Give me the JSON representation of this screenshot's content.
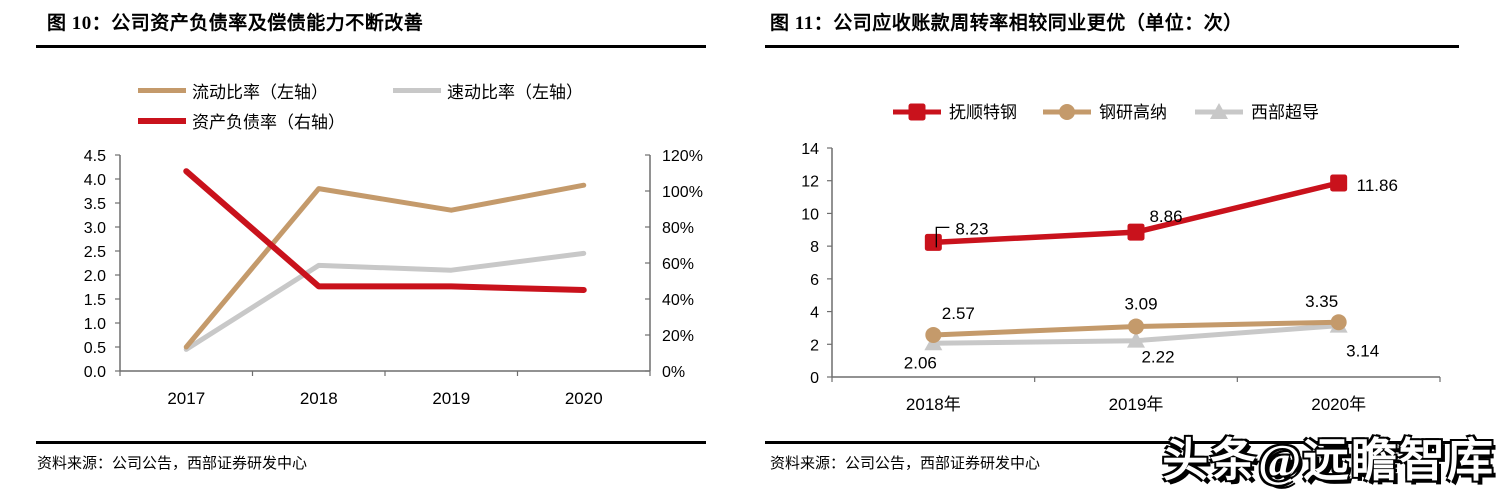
{
  "panels": [
    {
      "source": "资料来源：公司公告，西部证券研发中心"
    },
    {
      "source": "资料来源：公司公告，西部证券研发中心"
    }
  ],
  "watermark": "头条@远瞻智库",
  "colors": {
    "red": "#C9121C",
    "tan": "#C49A6B",
    "gray": "#C8C8C8",
    "axis": "#6E6E6E"
  },
  "chart_data": [
    {
      "type": "line",
      "title": "图 10：公司资产负债率及偿债能力不断改善",
      "categories": [
        "2017",
        "2018",
        "2019",
        "2020"
      ],
      "series": [
        {
          "name": "流动比率（左轴）",
          "axis": "left",
          "color": "#C49A6B",
          "values": [
            0.5,
            3.8,
            3.35,
            3.87
          ]
        },
        {
          "name": "速动比率（左轴）",
          "axis": "left",
          "color": "#C8C8C8",
          "values": [
            0.45,
            2.2,
            2.1,
            2.45
          ]
        },
        {
          "name": "资产负债率（右轴）",
          "axis": "right",
          "color": "#C9121C",
          "values": [
            111,
            47,
            47,
            45
          ]
        }
      ],
      "left_axis": {
        "min": 0,
        "max": 4.5,
        "ticks": [
          "0.0",
          "0.5",
          "1.0",
          "1.5",
          "2.0",
          "2.5",
          "3.0",
          "3.5",
          "4.0",
          "4.5"
        ]
      },
      "right_axis": {
        "min": 0,
        "max": 120,
        "ticks": [
          "0%",
          "20%",
          "40%",
          "60%",
          "80%",
          "100%",
          "120%"
        ]
      },
      "legend_position": "top",
      "grid": false
    },
    {
      "type": "line",
      "title": "图 11：公司应收账款周转率相较同业更优（单位：次）",
      "categories": [
        "2018年",
        "2019年",
        "2020年"
      ],
      "series": [
        {
          "name": "抚顺特钢",
          "marker": "square",
          "color": "#C9121C",
          "values": [
            8.23,
            8.86,
            11.86
          ]
        },
        {
          "name": "钢研高纳",
          "marker": "circle",
          "color": "#C49A6B",
          "values": [
            2.57,
            3.09,
            3.35
          ]
        },
        {
          "name": "西部超导",
          "marker": "triangle",
          "color": "#C8C8C8",
          "values": [
            2.06,
            2.22,
            3.14
          ]
        }
      ],
      "y_axis": {
        "min": 0,
        "max": 14,
        "ticks": [
          "0",
          "2",
          "4",
          "6",
          "8",
          "10",
          "12",
          "14"
        ]
      },
      "data_labels": true,
      "legend_position": "top",
      "grid": false
    }
  ]
}
